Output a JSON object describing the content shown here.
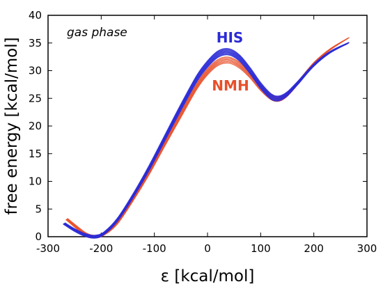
{
  "chart_data": {
    "type": "line",
    "xlabel": "ε [kcal/mol]",
    "ylabel": "free energy [kcal/mol]",
    "xlim": [
      -300,
      300
    ],
    "ylim": [
      0,
      40
    ],
    "xticks": [
      -300,
      -200,
      -100,
      0,
      100,
      200,
      300
    ],
    "yticks": [
      0,
      5,
      10,
      15,
      20,
      25,
      30,
      35,
      40
    ],
    "grid": false,
    "annotations": [
      {
        "text": "gas phase",
        "style": "italic"
      },
      {
        "text": "HIS",
        "color": "#2b2bd6"
      },
      {
        "text": "NMH",
        "color": "#e8502a"
      }
    ],
    "series": [
      {
        "name": "HIS",
        "color": "#2b2bd6",
        "curve_count": 6,
        "x": [
          -270,
          -250,
          -230,
          -212,
          -195,
          -170,
          -140,
          -110,
          -80,
          -50,
          -20,
          0,
          20,
          40,
          60,
          80,
          100,
          120,
          135,
          150,
          170,
          200,
          230,
          265
        ],
        "y": [
          2.4,
          1.2,
          0.3,
          0.0,
          0.6,
          3.0,
          7.4,
          12.4,
          17.9,
          23.4,
          28.6,
          31.2,
          33.0,
          33.4,
          32.3,
          30.0,
          27.3,
          25.3,
          25.0,
          25.8,
          27.8,
          31.0,
          33.3,
          35.0
        ]
      },
      {
        "name": "NMH",
        "color": "#e8502a",
        "curve_count": 6,
        "x": [
          -265,
          -245,
          -228,
          -212,
          -195,
          -170,
          -140,
          -110,
          -80,
          -50,
          -20,
          0,
          20,
          40,
          60,
          80,
          100,
          120,
          135,
          150,
          170,
          200,
          230,
          265
        ],
        "y": [
          3.2,
          1.6,
          0.4,
          0.0,
          0.5,
          2.5,
          6.8,
          11.6,
          16.9,
          22.1,
          27.2,
          29.8,
          31.5,
          31.9,
          31.0,
          29.2,
          26.9,
          25.2,
          24.9,
          25.7,
          27.8,
          31.3,
          33.8,
          35.9
        ]
      }
    ]
  }
}
